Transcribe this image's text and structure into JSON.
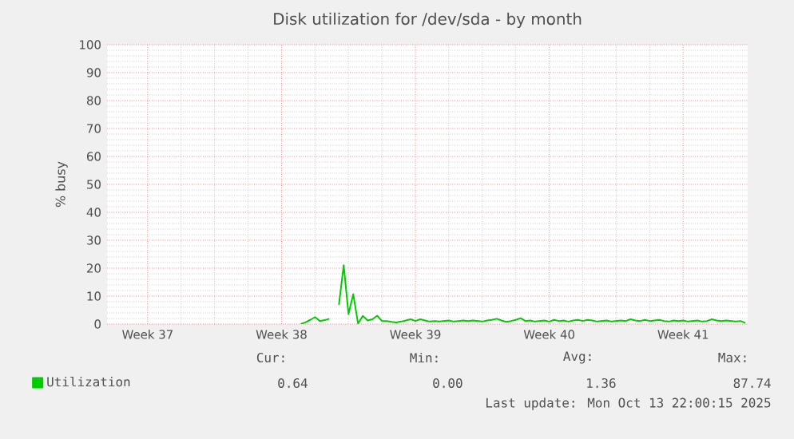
{
  "chart_data": {
    "type": "line",
    "title": "Disk utilization for /dev/sda - by month",
    "ylabel": "% busy",
    "categories": [
      null,
      null,
      null,
      null,
      null,
      null,
      null,
      null,
      "Week 37",
      null,
      null,
      null,
      null,
      null,
      null,
      null,
      null,
      null,
      null,
      null,
      null,
      null,
      null,
      null,
      null,
      null,
      null,
      null,
      null,
      null,
      null,
      null,
      null,
      null,
      null,
      null,
      "Week 38",
      null,
      null,
      null,
      null,
      null,
      null,
      null,
      null,
      null,
      null,
      null,
      null,
      null,
      null,
      null,
      null,
      null,
      null,
      null,
      null,
      null,
      null,
      null,
      null,
      null,
      null,
      null,
      "Week 39",
      null,
      null,
      null,
      null,
      null,
      null,
      null,
      null,
      null,
      null,
      null,
      null,
      null,
      null,
      null,
      null,
      null,
      null,
      null,
      null,
      null,
      null,
      null,
      null,
      null,
      null,
      null,
      "Week 40",
      null,
      null,
      null,
      null,
      null,
      null,
      null,
      null,
      null,
      null,
      null,
      null,
      null,
      null,
      null,
      null,
      null,
      null,
      null,
      null,
      null,
      null,
      null,
      null,
      null,
      null,
      null,
      "Week 41",
      null,
      null,
      null,
      null,
      null,
      null,
      null,
      null,
      null,
      null,
      null,
      null,
      null
    ],
    "ylim": [
      0,
      100
    ],
    "yticks": [
      0,
      10,
      20,
      30,
      40,
      50,
      60,
      70,
      80,
      90,
      100
    ],
    "grid": true,
    "legend": "bottom left",
    "marker": "none",
    "line_style": "solid",
    "series": [
      {
        "name": "Utilization",
        "color": "#00cc00",
        "values": [
          null,
          null,
          null,
          null,
          null,
          null,
          null,
          null,
          null,
          null,
          null,
          null,
          null,
          null,
          null,
          null,
          null,
          null,
          null,
          null,
          null,
          null,
          null,
          null,
          null,
          null,
          null,
          null,
          null,
          null,
          null,
          null,
          null,
          null,
          null,
          null,
          null,
          null,
          null,
          null,
          0,
          0.6,
          1.5,
          2.5,
          1.1,
          1.4,
          1.9,
          null,
          6.9,
          21.1,
          3.6,
          10.7,
          0.2,
          2.9,
          1.3,
          1.7,
          3.0,
          1.1,
          1.1,
          0.8,
          0.6,
          0.9,
          1.3,
          1.7,
          1.1,
          1.7,
          1.3,
          0.9,
          1.1,
          0.9,
          1.1,
          1.3,
          0.9,
          1.1,
          1.3,
          1.1,
          1.3,
          1.1,
          0.9,
          1.3,
          1.5,
          1.9,
          1.3,
          0.8,
          1.1,
          1.5,
          2.1,
          1.1,
          1.3,
          0.9,
          1.1,
          1.3,
          0.9,
          1.5,
          1.1,
          1.3,
          0.9,
          1.3,
          1.5,
          1.1,
          1.5,
          1.3,
          0.9,
          1.1,
          1.3,
          0.9,
          1.1,
          1.3,
          1.1,
          1.7,
          1.3,
          1.1,
          1.5,
          1.1,
          1.3,
          1.5,
          1.1,
          0.9,
          1.3,
          1.1,
          1.3,
          0.9,
          1.1,
          1.3,
          0.9,
          1.1,
          1.7,
          1.3,
          1.1,
          1.3,
          1.1,
          0.9,
          1.1,
          0.4
        ]
      }
    ],
    "annotations": [
      "Cur:",
      "Min:",
      "Avg:",
      "Max:",
      "0.64",
      "0.00",
      "1.36",
      "87.74",
      "Last update: Mon Oct 13 22:00:15 2025"
    ]
  }
}
